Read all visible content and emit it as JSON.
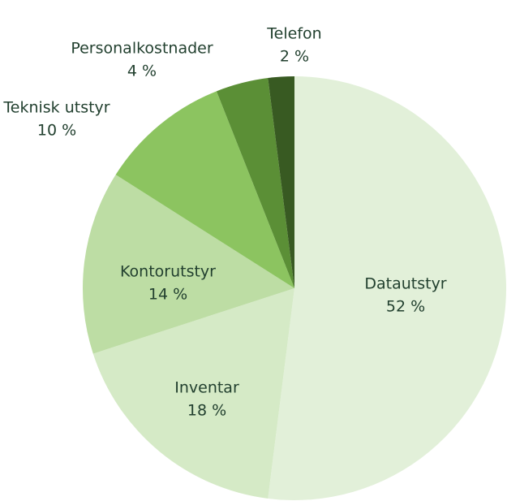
{
  "chart_data": {
    "type": "pie",
    "categories": [
      "Datautstyr",
      "Inventar",
      "Kontorutstyr",
      "Teknisk utstyr",
      "Personalkostnader",
      "Telefon"
    ],
    "values": [
      52,
      18,
      14,
      10,
      4,
      2
    ],
    "value_labels": [
      "52 %",
      "18 %",
      "14 %",
      "10 %",
      "4 %",
      "2 %"
    ],
    "colors": [
      "#e2f0d9",
      "#d5eac6",
      "#bddda4",
      "#8cc460",
      "#5b8f36",
      "#385a22"
    ]
  }
}
